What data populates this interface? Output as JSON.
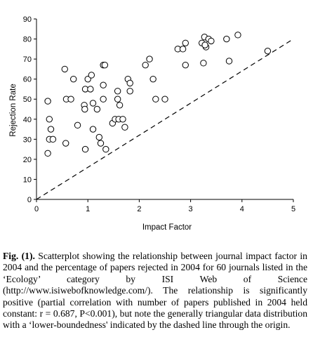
{
  "chart_data": {
    "type": "scatter",
    "title": "",
    "xlabel": "Impact Factor",
    "ylabel": "Rejection Rate",
    "xlim": [
      0,
      5
    ],
    "ylim": [
      0,
      90
    ],
    "xticks": [
      "0",
      "1",
      "2",
      "3",
      "4",
      "5"
    ],
    "yticks": [
      "0",
      "10",
      "20",
      "30",
      "40",
      "50",
      "60",
      "70",
      "80",
      "90"
    ],
    "grid": false,
    "legend": "none",
    "marker": "open-circle",
    "reference_line": {
      "style": "dashed",
      "from": [
        0,
        0
      ],
      "to": [
        5,
        80
      ]
    },
    "points": [
      {
        "x": 0.22,
        "y": 23
      },
      {
        "x": 0.22,
        "y": 49
      },
      {
        "x": 0.25,
        "y": 40
      },
      {
        "x": 0.28,
        "y": 35
      },
      {
        "x": 0.25,
        "y": 30
      },
      {
        "x": 0.32,
        "y": 30
      },
      {
        "x": 0.55,
        "y": 65
      },
      {
        "x": 0.58,
        "y": 50
      },
      {
        "x": 0.57,
        "y": 28
      },
      {
        "x": 0.67,
        "y": 50
      },
      {
        "x": 0.72,
        "y": 60
      },
      {
        "x": 0.8,
        "y": 37
      },
      {
        "x": 0.93,
        "y": 47
      },
      {
        "x": 0.94,
        "y": 45
      },
      {
        "x": 0.95,
        "y": 55
      },
      {
        "x": 0.95,
        "y": 25
      },
      {
        "x": 1.0,
        "y": 60
      },
      {
        "x": 1.05,
        "y": 55
      },
      {
        "x": 1.07,
        "y": 62
      },
      {
        "x": 1.1,
        "y": 48
      },
      {
        "x": 1.1,
        "y": 35
      },
      {
        "x": 1.18,
        "y": 45
      },
      {
        "x": 1.22,
        "y": 31
      },
      {
        "x": 1.25,
        "y": 28
      },
      {
        "x": 1.3,
        "y": 67
      },
      {
        "x": 1.33,
        "y": 67
      },
      {
        "x": 1.3,
        "y": 57
      },
      {
        "x": 1.3,
        "y": 50
      },
      {
        "x": 1.35,
        "y": 25
      },
      {
        "x": 1.48,
        "y": 38
      },
      {
        "x": 1.53,
        "y": 40
      },
      {
        "x": 1.58,
        "y": 54
      },
      {
        "x": 1.58,
        "y": 50
      },
      {
        "x": 1.6,
        "y": 40
      },
      {
        "x": 1.62,
        "y": 47
      },
      {
        "x": 1.68,
        "y": 40
      },
      {
        "x": 1.72,
        "y": 36
      },
      {
        "x": 1.78,
        "y": 60
      },
      {
        "x": 1.82,
        "y": 58
      },
      {
        "x": 1.82,
        "y": 54
      },
      {
        "x": 2.12,
        "y": 67
      },
      {
        "x": 2.2,
        "y": 70
      },
      {
        "x": 2.27,
        "y": 60
      },
      {
        "x": 2.32,
        "y": 50
      },
      {
        "x": 2.5,
        "y": 50
      },
      {
        "x": 2.75,
        "y": 75
      },
      {
        "x": 2.85,
        "y": 75
      },
      {
        "x": 2.9,
        "y": 78
      },
      {
        "x": 2.9,
        "y": 67
      },
      {
        "x": 3.22,
        "y": 78
      },
      {
        "x": 3.27,
        "y": 81
      },
      {
        "x": 3.3,
        "y": 76
      },
      {
        "x": 3.35,
        "y": 80
      },
      {
        "x": 3.4,
        "y": 79
      },
      {
        "x": 3.25,
        "y": 68
      },
      {
        "x": 3.7,
        "y": 80
      },
      {
        "x": 3.75,
        "y": 69
      },
      {
        "x": 3.92,
        "y": 82
      },
      {
        "x": 4.5,
        "y": 74
      },
      {
        "x": 3.28,
        "y": 77
      }
    ]
  },
  "caption": {
    "label": "Fig. (1).",
    "text": " Scatterplot showing the relationship between journal impact factor in 2004 and the percentage of papers rejected in 2004 for 60 journals listed in the ‘Ecology’ category by ISI Web of Science (http://www.isiwebofknowledge.com/). The relationship is significantly positive (partial correlation with number of papers published in 2004 held constant: r = 0.687, P<0.001), but note the generally triangular data distribution with a ‘lower-boundedness' indicated by the dashed line through the origin."
  }
}
